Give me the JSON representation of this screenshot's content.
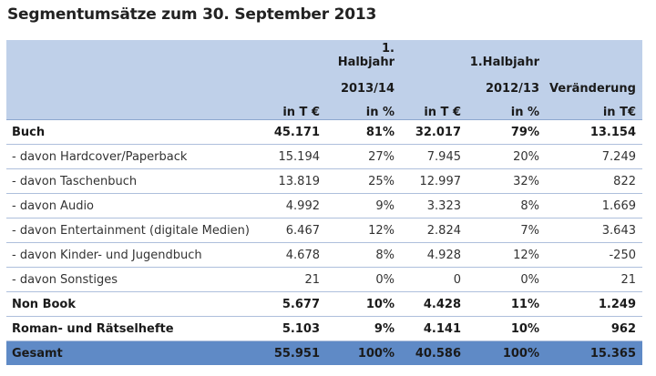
{
  "title": "Segmentumsätze zum 30. September 2013",
  "header": {
    "period1_line1": "1. Halbjahr",
    "period1_line2": "2013/14",
    "period2_line1": "1.Halbjahr",
    "period2_line2": "2012/13",
    "change_line2": "Veränderung",
    "unit_abs": "in T €",
    "unit_pct": "in %",
    "unit_change": "in T€"
  },
  "rows": [
    {
      "label": "Buch",
      "v1": "45.171",
      "p1": "81%",
      "v2": "32.017",
      "p2": "79%",
      "chg": "13.154"
    },
    {
      "label": "- davon Hardcover/Paperback",
      "v1": "15.194",
      "p1": "27%",
      "v2": "7.945",
      "p2": "20%",
      "chg": "7.249"
    },
    {
      "label": "- davon Taschenbuch",
      "v1": "13.819",
      "p1": "25%",
      "v2": "12.997",
      "p2": "32%",
      "chg": "822"
    },
    {
      "label": "- davon Audio",
      "v1": "4.992",
      "p1": "9%",
      "v2": "3.323",
      "p2": "8%",
      "chg": "1.669"
    },
    {
      "label": "- davon Entertainment (digitale Medien)",
      "v1": "6.467",
      "p1": "12%",
      "v2": "2.824",
      "p2": "7%",
      "chg": "3.643"
    },
    {
      "label": "- davon Kinder- und Jugendbuch",
      "v1": "4.678",
      "p1": "8%",
      "v2": "4.928",
      "p2": "12%",
      "chg": "-250"
    },
    {
      "label": "- davon Sonstiges",
      "v1": "21",
      "p1": "0%",
      "v2": "0",
      "p2": "0%",
      "chg": "21"
    },
    {
      "label": "Non Book",
      "v1": "5.677",
      "p1": "10%",
      "v2": "4.428",
      "p2": "11%",
      "chg": "1.249"
    },
    {
      "label": "Roman- und Rätselhefte",
      "v1": "5.103",
      "p1": "9%",
      "v2": "4.141",
      "p2": "10%",
      "chg": "962"
    },
    {
      "label": "Gesamt",
      "v1": "55.951",
      "p1": "100%",
      "v2": "40.586",
      "p2": "100%",
      "chg": "15.365"
    }
  ]
}
